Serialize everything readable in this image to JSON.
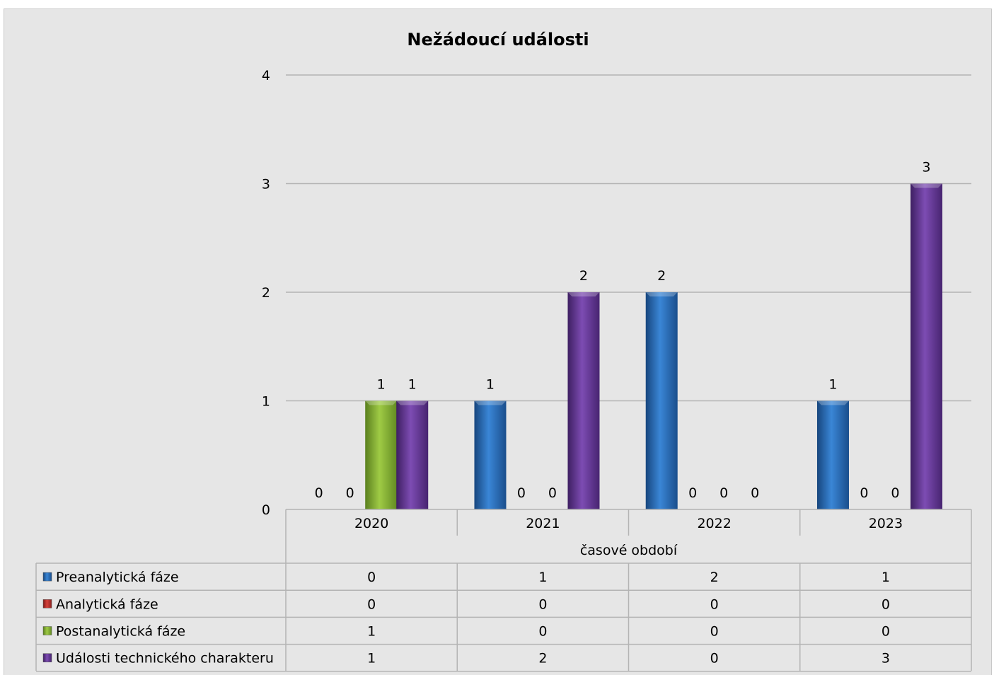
{
  "chart_data": {
    "type": "bar",
    "title": "Nežádoucí události",
    "xlabel": "časové období",
    "ylabel": "",
    "categories": [
      "2020",
      "2021",
      "2022",
      "2023"
    ],
    "ylim": [
      0,
      4
    ],
    "yticks": [
      0,
      1,
      2,
      3,
      4
    ],
    "grid": true,
    "legend": "data-table",
    "series": [
      {
        "name": "Preanalytická fáze",
        "color": "#2e72c0",
        "values": [
          0,
          1,
          2,
          1
        ]
      },
      {
        "name": "Analytická fáze",
        "color": "#c0302c",
        "values": [
          0,
          0,
          0,
          0
        ]
      },
      {
        "name": "Postanalytická fáze",
        "color": "#8db83a",
        "values": [
          1,
          0,
          0,
          0
        ]
      },
      {
        "name": "Události technického charakteru",
        "color": "#7040a0",
        "values": [
          1,
          2,
          0,
          3
        ]
      }
    ]
  }
}
